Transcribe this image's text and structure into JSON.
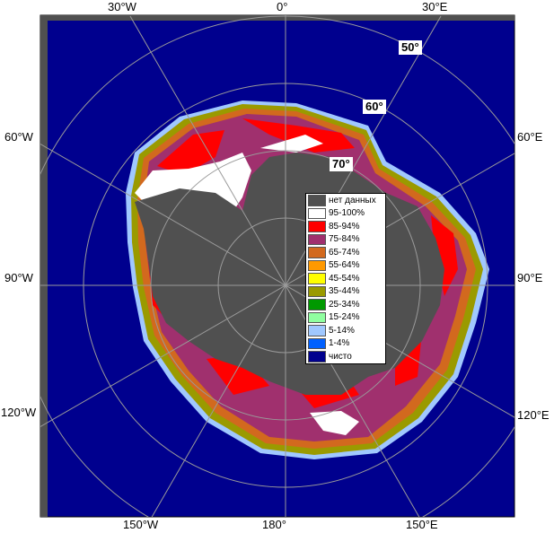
{
  "map": {
    "lon_labels_top": [
      "30°W",
      "0°",
      "30°E"
    ],
    "lon_labels_bottom": [
      "150°W",
      "180°",
      "150°E"
    ],
    "lon_labels_left": [
      "60°W",
      "90°W",
      "120°W"
    ],
    "lon_labels_right": [
      "60°E",
      "90°E",
      "120°E"
    ],
    "lat_labels": [
      "50°",
      "60°",
      "70°"
    ],
    "colors": {
      "ocean": "#00008e",
      "land": "#505050",
      "grid": "#9a9a9a"
    }
  },
  "legend": {
    "items": [
      {
        "label": "нет данных",
        "color": "#505050"
      },
      {
        "label": "95-100%",
        "color": "#ffffff"
      },
      {
        "label": "85-94%",
        "color": "#ff0000"
      },
      {
        "label": "75-84%",
        "color": "#a0306e"
      },
      {
        "label": "65-74%",
        "color": "#d2691e"
      },
      {
        "label": "55-64%",
        "color": "#ff9900"
      },
      {
        "label": "45-54%",
        "color": "#ffff00"
      },
      {
        "label": "35-44%",
        "color": "#9a9a00"
      },
      {
        "label": "25-34%",
        "color": "#009900"
      },
      {
        "label": "15-24%",
        "color": "#90ffa0"
      },
      {
        "label": "5-14%",
        "color": "#a0c8ff"
      },
      {
        "label": "1-4%",
        "color": "#0060ff"
      },
      {
        "label": "чисто",
        "color": "#00008e"
      }
    ]
  }
}
